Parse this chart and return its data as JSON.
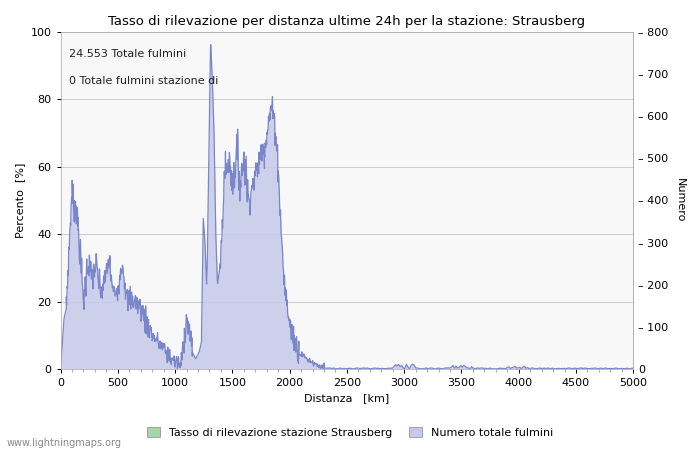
{
  "title": "Tasso di rilevazione per distanza ultime 24h per la stazione: Strausberg",
  "xlabel": "Distanza   [km]",
  "ylabel_left": "Percento  [%]",
  "ylabel_right": "Numero",
  "annotation_line1": "24.553 Totale fulmini",
  "annotation_line2": "0 Totale fulmini stazione di",
  "legend_label1": "Tasso di rilevazione stazione Strausberg",
  "legend_label2": "Numero totale fulmini",
  "legend_color1": "#a5d6a7",
  "legend_color2": "#c5cae9",
  "watermark": "www.lightningmaps.org",
  "xlim": [
    0,
    5000
  ],
  "ylim_left": [
    0,
    100
  ],
  "ylim_right": [
    0,
    800
  ],
  "xticks": [
    0,
    500,
    1000,
    1500,
    2000,
    2500,
    3000,
    3500,
    4000,
    4500,
    5000
  ],
  "yticks_left": [
    0,
    20,
    40,
    60,
    80,
    100
  ],
  "yticks_right": [
    0,
    100,
    200,
    300,
    400,
    500,
    600,
    700,
    800
  ],
  "line_color": "#7986cb",
  "fill_color": "#c5cae9",
  "bg_color": "#f8f8f8",
  "grid_color": "#cccccc",
  "spine_color": "#aaaaaa"
}
